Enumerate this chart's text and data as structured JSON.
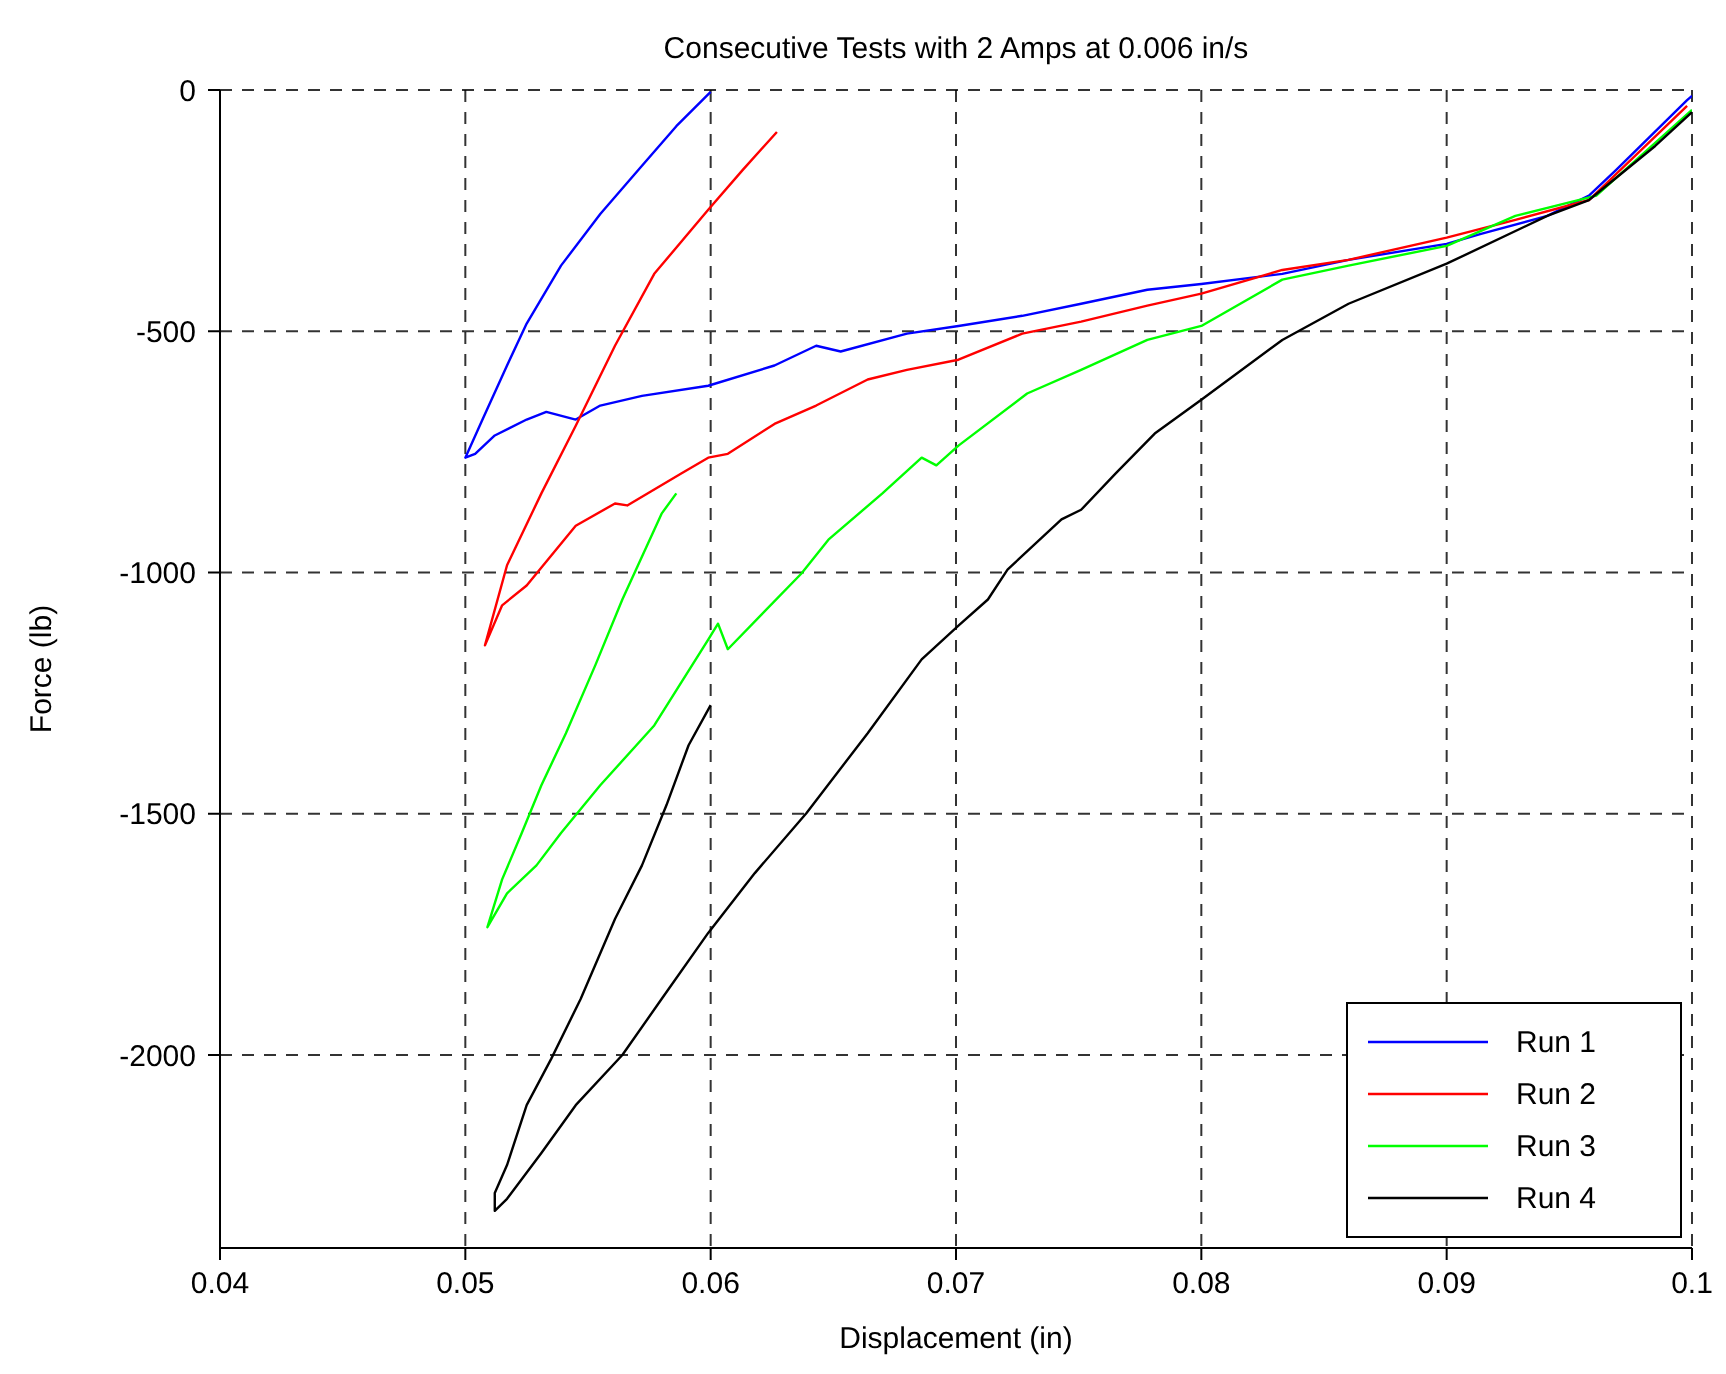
{
  "chart_data": {
    "type": "line",
    "title": "Consecutive Tests with 2 Amps at 0.006 in/s",
    "xlabel": "Displacement (in)",
    "ylabel": "Force (lb)",
    "xlim": [
      0.04,
      0.1
    ],
    "xticks": [
      0.04,
      0.05,
      0.06,
      0.07,
      0.08,
      0.09,
      0.1
    ],
    "ylim": [
      -2400,
      0
    ],
    "yticks": [
      -2000,
      -1500,
      -1000,
      -500,
      0
    ],
    "grid": true,
    "legend": "bottom right",
    "marker": "none",
    "line_style": "solid",
    "series": [
      {
        "name": "Run 1",
        "color": "#0000ff",
        "x": [
          0.1,
          0.0998,
          0.0969,
          0.0958,
          0.0941,
          0.0914,
          0.09,
          0.086,
          0.0833,
          0.08,
          0.0778,
          0.0751,
          0.0727,
          0.0701,
          0.068,
          0.0653,
          0.0643,
          0.0626,
          0.0599,
          0.0572,
          0.0555,
          0.0545,
          0.0533,
          0.0525,
          0.0512,
          0.0504,
          0.05,
          0.0507,
          0.0517,
          0.0525,
          0.0539,
          0.0555,
          0.0572,
          0.0586,
          0.06
        ],
        "values": [
          -12,
          -21,
          -166,
          -219,
          -261,
          -298,
          -319,
          -352,
          -381,
          -402,
          -414,
          -443,
          -468,
          -489,
          -505,
          -542,
          -530,
          -571,
          -613,
          -634,
          -654,
          -683,
          -667,
          -683,
          -716,
          -754,
          -762,
          -683,
          -571,
          -484,
          -364,
          -257,
          -157,
          -75,
          -4
        ]
      },
      {
        "name": "Run 2",
        "color": "#ff0000",
        "x": [
          0.0998,
          0.0958,
          0.0928,
          0.09,
          0.086,
          0.0833,
          0.08,
          0.0778,
          0.0751,
          0.0727,
          0.0701,
          0.068,
          0.0664,
          0.0643,
          0.0626,
          0.0607,
          0.0599,
          0.0588,
          0.0566,
          0.0561,
          0.0545,
          0.0525,
          0.0515,
          0.0508,
          0.0517,
          0.0531,
          0.0545,
          0.0561,
          0.0577,
          0.0599,
          0.0613,
          0.0627
        ],
        "values": [
          -33,
          -228,
          -269,
          -306,
          -352,
          -373,
          -422,
          -447,
          -480,
          -505,
          -559,
          -580,
          -600,
          -654,
          -692,
          -754,
          -762,
          -795,
          -861,
          -857,
          -903,
          -1027,
          -1068,
          -1151,
          -985,
          -836,
          -696,
          -530,
          -381,
          -248,
          -166,
          -87
        ]
      },
      {
        "name": "Run 3",
        "color": "#00ff00",
        "x": [
          0.1,
          0.0961,
          0.0928,
          0.09,
          0.086,
          0.0833,
          0.08,
          0.0778,
          0.0751,
          0.0729,
          0.0701,
          0.0692,
          0.0686,
          0.067,
          0.0648,
          0.0637,
          0.0607,
          0.0603,
          0.0599,
          0.0577,
          0.0555,
          0.0539,
          0.0529,
          0.0517,
          0.0509,
          0.0515,
          0.0523,
          0.0531,
          0.0541,
          0.0553,
          0.0564,
          0.058,
          0.0586
        ],
        "values": [
          -41,
          -219,
          -261,
          -323,
          -364,
          -393,
          -489,
          -518,
          -580,
          -629,
          -737,
          -778,
          -762,
          -836,
          -932,
          -1002,
          -1159,
          -1106,
          -1139,
          -1317,
          -1441,
          -1540,
          -1607,
          -1665,
          -1735,
          -1636,
          -1540,
          -1441,
          -1333,
          -1192,
          -1056,
          -878,
          -836
        ]
      },
      {
        "name": "Run 4",
        "color": "#000000",
        "x": [
          0.1,
          0.0985,
          0.0958,
          0.0941,
          0.09,
          0.086,
          0.0833,
          0.08,
          0.0781,
          0.0765,
          0.0751,
          0.0743,
          0.0721,
          0.0713,
          0.0701,
          0.0686,
          0.0664,
          0.0639,
          0.0618,
          0.0599,
          0.058,
          0.0564,
          0.0545,
          0.0531,
          0.0517,
          0.0512,
          0.0512,
          0.0517,
          0.0525,
          0.0535,
          0.0547,
          0.0561,
          0.0572,
          0.0582,
          0.0591,
          0.06
        ],
        "values": [
          -46,
          -116,
          -228,
          -261,
          -360,
          -443,
          -518,
          -642,
          -712,
          -795,
          -870,
          -890,
          -994,
          -1056,
          -1110,
          -1180,
          -1333,
          -1499,
          -1623,
          -1747,
          -1884,
          -2000,
          -2104,
          -2203,
          -2298,
          -2323,
          -2286,
          -2228,
          -2104,
          -2008,
          -1884,
          -1718,
          -1607,
          -1482,
          -1358,
          -1275
        ]
      }
    ]
  }
}
